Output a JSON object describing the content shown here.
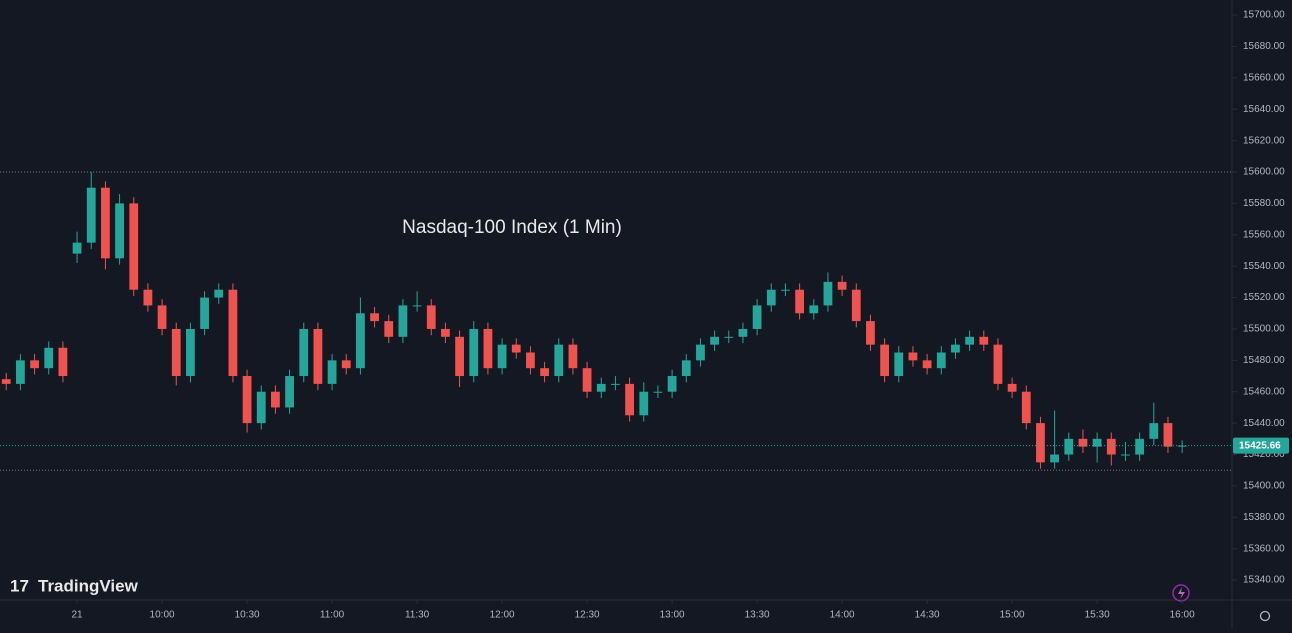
{
  "chart_data": {
    "type": "candlestick",
    "title": "Nasdaq-100 Index (1 Min)",
    "watermark": "TradingView",
    "up_color": "#26a69a",
    "down_color": "#ef5350",
    "xlim": [
      -27.2,
      407.6
    ],
    "ylim": [
      15327.3,
      15709.6
    ],
    "xticks": [
      {
        "value": 0,
        "label": "21"
      },
      {
        "value": 30,
        "label": "10:00"
      },
      {
        "value": 60,
        "label": "10:30"
      },
      {
        "value": 90,
        "label": "11:00"
      },
      {
        "value": 120,
        "label": "11:30"
      },
      {
        "value": 150,
        "label": "12:00"
      },
      {
        "value": 180,
        "label": "12:30"
      },
      {
        "value": 210,
        "label": "13:00"
      },
      {
        "value": 240,
        "label": "13:30"
      },
      {
        "value": 270,
        "label": "14:00"
      },
      {
        "value": 300,
        "label": "14:30"
      },
      {
        "value": 330,
        "label": "15:00"
      },
      {
        "value": 360,
        "label": "15:30"
      },
      {
        "value": 390,
        "label": "16:00"
      }
    ],
    "yticks": [
      {
        "value": 15340,
        "label": "15340.00"
      },
      {
        "value": 15360,
        "label": "15360.00"
      },
      {
        "value": 15380,
        "label": "15380.00"
      },
      {
        "value": 15400,
        "label": "15400.00"
      },
      {
        "value": 15420,
        "label": "15420.00"
      },
      {
        "value": 15440,
        "label": "15440.00"
      },
      {
        "value": 15460,
        "label": "15460.00"
      },
      {
        "value": 15480,
        "label": "15480.00"
      },
      {
        "value": 15500,
        "label": "15500.00"
      },
      {
        "value": 15520,
        "label": "15520.00"
      },
      {
        "value": 15540,
        "label": "15540.00"
      },
      {
        "value": 15560,
        "label": "15560.00"
      },
      {
        "value": 15580,
        "label": "15580.00"
      },
      {
        "value": 15600,
        "label": "15600.00"
      },
      {
        "value": 15620,
        "label": "15620.00"
      },
      {
        "value": 15640,
        "label": "15640.00"
      },
      {
        "value": 15660,
        "label": "15660.00"
      },
      {
        "value": 15680,
        "label": "15680.00"
      },
      {
        "value": 15700,
        "label": "15700.00"
      }
    ],
    "levels": [
      15600,
      15410
    ],
    "x": [
      -25,
      -20,
      -15,
      -10,
      -5,
      0,
      5,
      10,
      15,
      20,
      25,
      30,
      35,
      40,
      45,
      50,
      55,
      60,
      65,
      70,
      75,
      80,
      85,
      90,
      95,
      100,
      105,
      110,
      115,
      120,
      125,
      130,
      135,
      140,
      145,
      150,
      155,
      160,
      165,
      170,
      175,
      180,
      185,
      190,
      195,
      200,
      205,
      210,
      215,
      220,
      225,
      230,
      235,
      240,
      245,
      250,
      255,
      260,
      265,
      270,
      275,
      280,
      285,
      290,
      295,
      300,
      305,
      310,
      315,
      320,
      325,
      330,
      335,
      340,
      345,
      350,
      355,
      360,
      365,
      370,
      375,
      380,
      385,
      390
    ],
    "ohlc": [
      [
        15468,
        15472,
        15461,
        15465
      ],
      [
        15465,
        15484,
        15461,
        15480
      ],
      [
        15480,
        15484,
        15471,
        15475
      ],
      [
        15475,
        15492,
        15471,
        15488
      ],
      [
        15488,
        15492,
        15466,
        15470
      ],
      [
        15548,
        15562,
        15542,
        15555
      ],
      [
        15555,
        15600,
        15551,
        15590
      ],
      [
        15590,
        15594,
        15538,
        15545
      ],
      [
        15545,
        15586,
        15541,
        15580
      ],
      [
        15580,
        15584,
        15521,
        15525
      ],
      [
        15525,
        15529,
        15511,
        15515
      ],
      [
        15515,
        15519,
        15496,
        15500
      ],
      [
        15500,
        15504,
        15464,
        15470
      ],
      [
        15470,
        15504,
        15466,
        15500
      ],
      [
        15500,
        15524,
        15496,
        15520
      ],
      [
        15520,
        15529,
        15516,
        15525
      ],
      [
        15525,
        15529,
        15466,
        15470
      ],
      [
        15470,
        15474,
        15434,
        15440
      ],
      [
        15440,
        15464,
        15436,
        15460
      ],
      [
        15460,
        15464,
        15446,
        15450
      ],
      [
        15450,
        15474,
        15446,
        15470
      ],
      [
        15470,
        15504,
        15466,
        15500
      ],
      [
        15500,
        15504,
        15461,
        15465
      ],
      [
        15465,
        15484,
        15461,
        15480
      ],
      [
        15480,
        15484,
        15471,
        15475
      ],
      [
        15475,
        15520,
        15471,
        15510
      ],
      [
        15510,
        15514,
        15501,
        15505
      ],
      [
        15505,
        15509,
        15491,
        15495
      ],
      [
        15495,
        15519,
        15491,
        15515
      ],
      [
        15515,
        15524,
        15511,
        15515
      ],
      [
        15515,
        15519,
        15496,
        15500
      ],
      [
        15500,
        15504,
        15491,
        15495
      ],
      [
        15495,
        15499,
        15463,
        15470
      ],
      [
        15470,
        15505,
        15466,
        15500
      ],
      [
        15500,
        15504,
        15471,
        15475
      ],
      [
        15475,
        15494,
        15471,
        15490
      ],
      [
        15490,
        15494,
        15481,
        15485
      ],
      [
        15485,
        15489,
        15471,
        15475
      ],
      [
        15475,
        15479,
        15466,
        15470
      ],
      [
        15470,
        15494,
        15466,
        15490
      ],
      [
        15490,
        15494,
        15471,
        15475
      ],
      [
        15475,
        15479,
        15456,
        15460
      ],
      [
        15460,
        15469,
        15456,
        15465
      ],
      [
        15465,
        15470,
        15461,
        15465
      ],
      [
        15465,
        15469,
        15441,
        15445
      ],
      [
        15445,
        15466,
        15441,
        15460
      ],
      [
        15460,
        15464,
        15456,
        15460
      ],
      [
        15460,
        15474,
        15456,
        15470
      ],
      [
        15470,
        15484,
        15466,
        15480
      ],
      [
        15480,
        15494,
        15476,
        15490
      ],
      [
        15490,
        15499,
        15486,
        15495
      ],
      [
        15495,
        15499,
        15491,
        15495
      ],
      [
        15495,
        15504,
        15491,
        15500
      ],
      [
        15500,
        15519,
        15496,
        15515
      ],
      [
        15515,
        15529,
        15511,
        15525
      ],
      [
        15525,
        15529,
        15521,
        15525
      ],
      [
        15525,
        15529,
        15506,
        15510
      ],
      [
        15510,
        15519,
        15506,
        15515
      ],
      [
        15515,
        15536,
        15511,
        15530
      ],
      [
        15530,
        15534,
        15521,
        15525
      ],
      [
        15525,
        15529,
        15501,
        15505
      ],
      [
        15505,
        15509,
        15486,
        15490
      ],
      [
        15490,
        15494,
        15466,
        15470
      ],
      [
        15470,
        15489,
        15466,
        15485
      ],
      [
        15485,
        15489,
        15476,
        15480
      ],
      [
        15480,
        15484,
        15471,
        15475
      ],
      [
        15475,
        15489,
        15471,
        15485
      ],
      [
        15485,
        15494,
        15481,
        15490
      ],
      [
        15490,
        15499,
        15486,
        15495
      ],
      [
        15495,
        15499,
        15486,
        15490
      ],
      [
        15490,
        15494,
        15461,
        15465
      ],
      [
        15465,
        15469,
        15456,
        15460
      ],
      [
        15460,
        15464,
        15436,
        15440
      ],
      [
        15440,
        15444,
        15411,
        15415
      ],
      [
        15415,
        15448,
        15411,
        15420
      ],
      [
        15420,
        15434,
        15416,
        15430
      ],
      [
        15430,
        15436,
        15421,
        15425
      ],
      [
        15425,
        15434,
        15415,
        15430
      ],
      [
        15430,
        15434,
        15413,
        15420
      ],
      [
        15420,
        15428,
        15416,
        15420
      ],
      [
        15420,
        15434,
        15416,
        15430
      ],
      [
        15430,
        15453,
        15426,
        15440
      ],
      [
        15440,
        15444,
        15421,
        15425
      ],
      [
        15425,
        15429,
        15421,
        15425.66
      ]
    ]
  }
}
